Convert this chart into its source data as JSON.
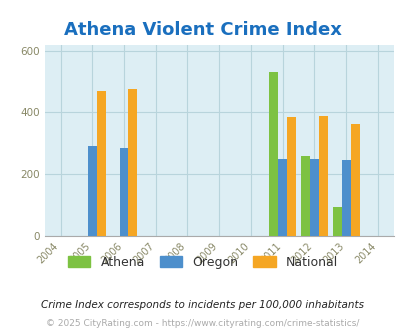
{
  "title": "Athena Violent Crime Index",
  "years": [
    2004,
    2005,
    2006,
    2007,
    2008,
    2009,
    2010,
    2011,
    2012,
    2013,
    2014
  ],
  "athena": {
    "2011": 530,
    "2012": 260,
    "2013": 95
  },
  "oregon": {
    "2005": 290,
    "2006": 285,
    "2011": 250,
    "2012": 250,
    "2013": 245
  },
  "national": {
    "2005": 470,
    "2006": 476,
    "2011": 386,
    "2012": 387,
    "2013": 363
  },
  "athena_color": "#7dc242",
  "oregon_color": "#4d8fcc",
  "national_color": "#f5a623",
  "bg_color": "#ddeef4",
  "ylim": [
    0,
    620
  ],
  "yticks": [
    0,
    200,
    400,
    600
  ],
  "title_fontsize": 13,
  "title_color": "#1a6fbe",
  "footnote1": "Crime Index corresponds to incidents per 100,000 inhabitants",
  "footnote2": "© 2025 CityRating.com - https://www.cityrating.com/crime-statistics/",
  "bar_width": 0.28,
  "grid_color": "#b8d4dc"
}
